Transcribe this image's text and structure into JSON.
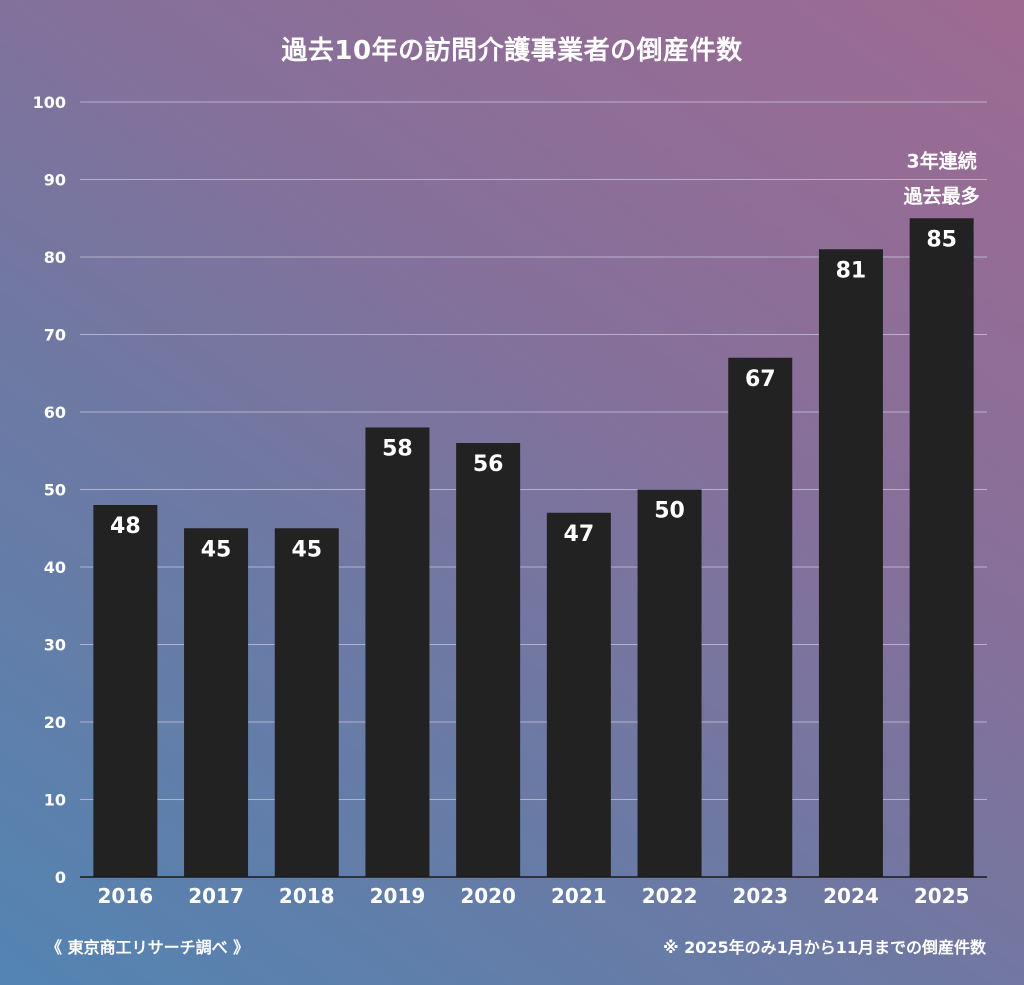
{
  "colors": {
    "bar": "#222222",
    "text": "#ffffff",
    "grid": "#c9c6da",
    "axis": "#1a1a1a"
  },
  "chart_data": {
    "type": "bar",
    "title": "過去10年の訪問介護事業者の倒産件数",
    "xlabel": "",
    "ylabel": "",
    "categories": [
      "2016",
      "2017",
      "2018",
      "2019",
      "2020",
      "2021",
      "2022",
      "2023",
      "2024",
      "2025"
    ],
    "values": [
      48,
      45,
      45,
      58,
      56,
      47,
      50,
      67,
      81,
      85
    ],
    "data_labels": [
      "48",
      "45",
      "45",
      "58",
      "56",
      "47",
      "50",
      "67",
      "81",
      "85"
    ],
    "ylim": [
      0,
      100
    ],
    "yticks": [
      0,
      10,
      20,
      30,
      40,
      50,
      60,
      70,
      80,
      90,
      100
    ],
    "ytick_labels": [
      "0",
      "10",
      "20",
      "30",
      "40",
      "50",
      "60",
      "70",
      "80",
      "90",
      "100"
    ],
    "grid": true,
    "legend": "none",
    "annotations": [
      {
        "category": "2025",
        "lines": [
          "3年連続",
          "過去最多"
        ]
      }
    ]
  },
  "footer": {
    "source": "《 東京商工リサーチ調べ 》",
    "note": "※ 2025年のみ1月から11月までの倒産件数"
  }
}
